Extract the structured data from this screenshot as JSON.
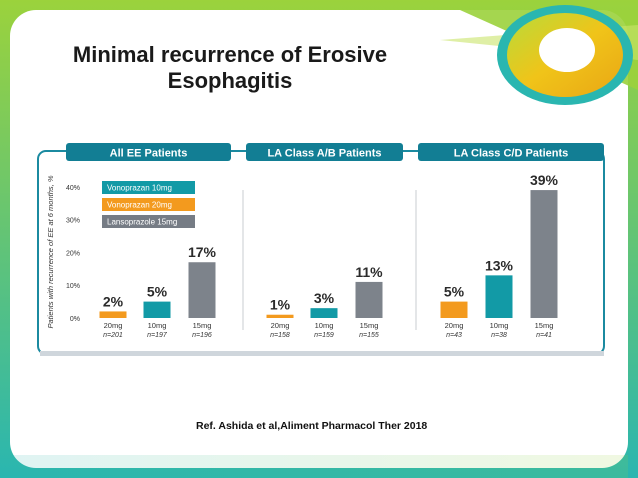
{
  "slide": {
    "title_line1": "Minimal recurrence of Erosive",
    "title_line2": "Esophagitis",
    "reference": "Ref. Ashida et al,Aliment Pharmacol Ther 2018"
  },
  "colors": {
    "teal": "#129aa6",
    "orange": "#f39a1e",
    "gray": "#767c85",
    "tab": "#127e94",
    "green": "#8cc63f",
    "border": "#1b8aa0"
  },
  "chart_data": {
    "type": "bar",
    "ylabel": "Patients with recurrence of EE at 6 months, %",
    "ylim": [
      0,
      40
    ],
    "yticks": [
      "0%",
      "10%",
      "20%",
      "30%",
      "40%"
    ],
    "legend": [
      "Vonoprazan 10mg",
      "Vonoprazan 20mg",
      "Lansoprazole 15mg"
    ],
    "panels": [
      {
        "title": "All EE Patients",
        "bars": [
          {
            "dose": "20mg",
            "n": "n=201",
            "value": 2,
            "label": "2%",
            "series": "Vonoprazan 20mg"
          },
          {
            "dose": "10mg",
            "n": "n=197",
            "value": 5,
            "label": "5%",
            "series": "Vonoprazan 10mg"
          },
          {
            "dose": "15mg",
            "n": "n=196",
            "value": 17,
            "label": "17%",
            "series": "Lansoprazole 15mg"
          }
        ]
      },
      {
        "title": "LA Class A/B Patients",
        "bars": [
          {
            "dose": "20mg",
            "n": "n=158",
            "value": 1,
            "label": "1%",
            "series": "Vonoprazan 20mg"
          },
          {
            "dose": "10mg",
            "n": "n=159",
            "value": 3,
            "label": "3%",
            "series": "Vonoprazan 10mg"
          },
          {
            "dose": "15mg",
            "n": "n=155",
            "value": 11,
            "label": "11%",
            "series": "Lansoprazole 15mg"
          }
        ]
      },
      {
        "title": "LA Class C/D Patients",
        "bars": [
          {
            "dose": "20mg",
            "n": "n=43",
            "value": 5,
            "label": "5%",
            "series": "Vonoprazan 20mg"
          },
          {
            "dose": "10mg",
            "n": "n=38",
            "value": 13,
            "label": "13%",
            "series": "Vonoprazan 10mg"
          },
          {
            "dose": "15mg",
            "n": "n=41",
            "value": 39,
            "label": "39%",
            "series": "Lansoprazole 15mg"
          }
        ]
      }
    ]
  }
}
